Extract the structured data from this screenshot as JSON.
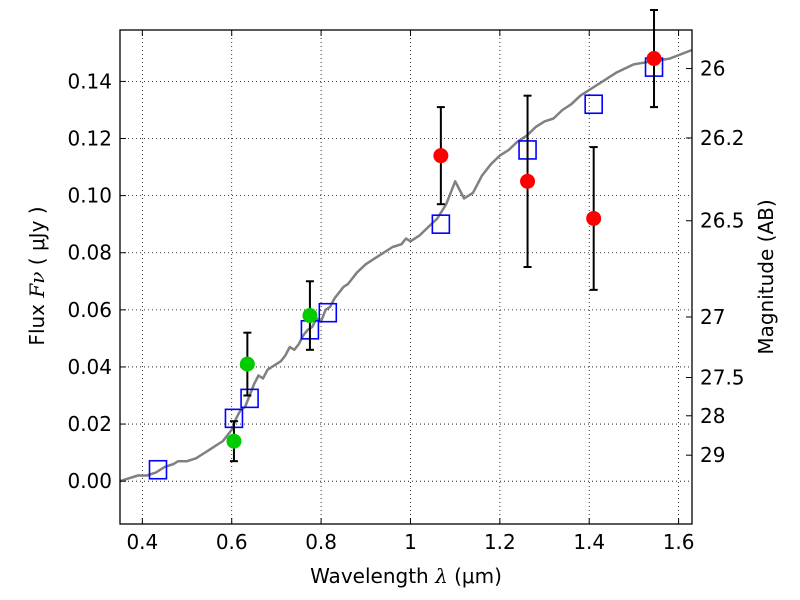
{
  "chart_data": {
    "type": "scatter",
    "xlabel": "Wavelength",
    "xlabel_symbol": "λ",
    "xlabel_unit": "(μm)",
    "ylabel": "Flux",
    "ylabel_symbol": "Fν",
    "ylabel_unit": "( μJy )",
    "y2label": "Magnitude (AB)",
    "xlim": [
      0.35,
      1.63
    ],
    "ylim": [
      -0.015,
      0.158
    ],
    "grid": true,
    "x_ticks": [
      0.4,
      0.6,
      0.8,
      1.0,
      1.2,
      1.4,
      1.6
    ],
    "x_tick_labels": [
      "0.4",
      "0.6",
      "0.8",
      "1",
      "1.2",
      "1.4",
      "1.6"
    ],
    "y_ticks": [
      0.0,
      0.02,
      0.04,
      0.06,
      0.08,
      0.1,
      0.12,
      0.14
    ],
    "y_tick_labels": [
      "0.00",
      "0.02",
      "0.04",
      "0.06",
      "0.08",
      "0.10",
      "0.12",
      "0.14"
    ],
    "mag_ticks": [
      {
        "label": "26",
        "flux": 0.1445
      },
      {
        "label": "26.2",
        "flux": 0.1202
      },
      {
        "label": "26.5",
        "flux": 0.0912
      },
      {
        "label": "27",
        "flux": 0.0575
      },
      {
        "label": "27.5",
        "flux": 0.0363
      },
      {
        "label": "28",
        "flux": 0.0229
      },
      {
        "label": "29",
        "flux": 0.0091
      }
    ],
    "model_curve": {
      "color": "#808080",
      "x": [
        0.35,
        0.37,
        0.39,
        0.4,
        0.41,
        0.43,
        0.45,
        0.47,
        0.48,
        0.5,
        0.52,
        0.53,
        0.55,
        0.56,
        0.57,
        0.58,
        0.59,
        0.6,
        0.61,
        0.62,
        0.63,
        0.64,
        0.65,
        0.66,
        0.67,
        0.68,
        0.7,
        0.71,
        0.72,
        0.73,
        0.74,
        0.75,
        0.76,
        0.77,
        0.78,
        0.79,
        0.8,
        0.81,
        0.82,
        0.83,
        0.84,
        0.85,
        0.86,
        0.87,
        0.88,
        0.9,
        0.92,
        0.94,
        0.96,
        0.98,
        0.99,
        1.0,
        1.02,
        1.04,
        1.06,
        1.08,
        1.1,
        1.12,
        1.14,
        1.16,
        1.18,
        1.2,
        1.22,
        1.24,
        1.26,
        1.28,
        1.3,
        1.32,
        1.34,
        1.36,
        1.38,
        1.4,
        1.43,
        1.46,
        1.5,
        1.54,
        1.58,
        1.63
      ],
      "y": [
        0.0,
        0.001,
        0.002,
        0.002,
        0.002,
        0.003,
        0.005,
        0.006,
        0.007,
        0.007,
        0.008,
        0.009,
        0.011,
        0.012,
        0.013,
        0.014,
        0.016,
        0.018,
        0.022,
        0.025,
        0.026,
        0.03,
        0.034,
        0.037,
        0.036,
        0.039,
        0.041,
        0.042,
        0.044,
        0.047,
        0.046,
        0.048,
        0.051,
        0.053,
        0.054,
        0.057,
        0.056,
        0.06,
        0.061,
        0.064,
        0.066,
        0.068,
        0.069,
        0.071,
        0.073,
        0.076,
        0.078,
        0.08,
        0.082,
        0.083,
        0.085,
        0.084,
        0.086,
        0.089,
        0.092,
        0.097,
        0.105,
        0.099,
        0.101,
        0.107,
        0.111,
        0.114,
        0.116,
        0.119,
        0.121,
        0.124,
        0.126,
        0.127,
        0.13,
        0.132,
        0.135,
        0.137,
        0.14,
        0.143,
        0.146,
        0.147,
        0.148,
        0.151
      ]
    },
    "series": [
      {
        "color": "#0000ff",
        "marker": "open-square",
        "x": [
          0.435,
          0.605,
          0.64,
          0.775,
          0.815,
          1.068,
          1.262,
          1.41,
          1.545
        ],
        "y": [
          0.004,
          0.022,
          0.029,
          0.053,
          0.059,
          0.09,
          0.116,
          0.132,
          0.145
        ]
      },
      {
        "color": "#00cc00",
        "marker": "filled-circle",
        "x": [
          0.605,
          0.635,
          0.775
        ],
        "y": [
          0.014,
          0.041,
          0.058
        ],
        "err": [
          0.007,
          0.011,
          0.012
        ]
      },
      {
        "color": "#ff0000",
        "marker": "filled-circle",
        "x": [
          1.068,
          1.262,
          1.41,
          1.545
        ],
        "y": [
          0.114,
          0.105,
          0.092,
          0.148
        ],
        "err": [
          0.017,
          0.03,
          0.025,
          0.017
        ]
      }
    ]
  }
}
